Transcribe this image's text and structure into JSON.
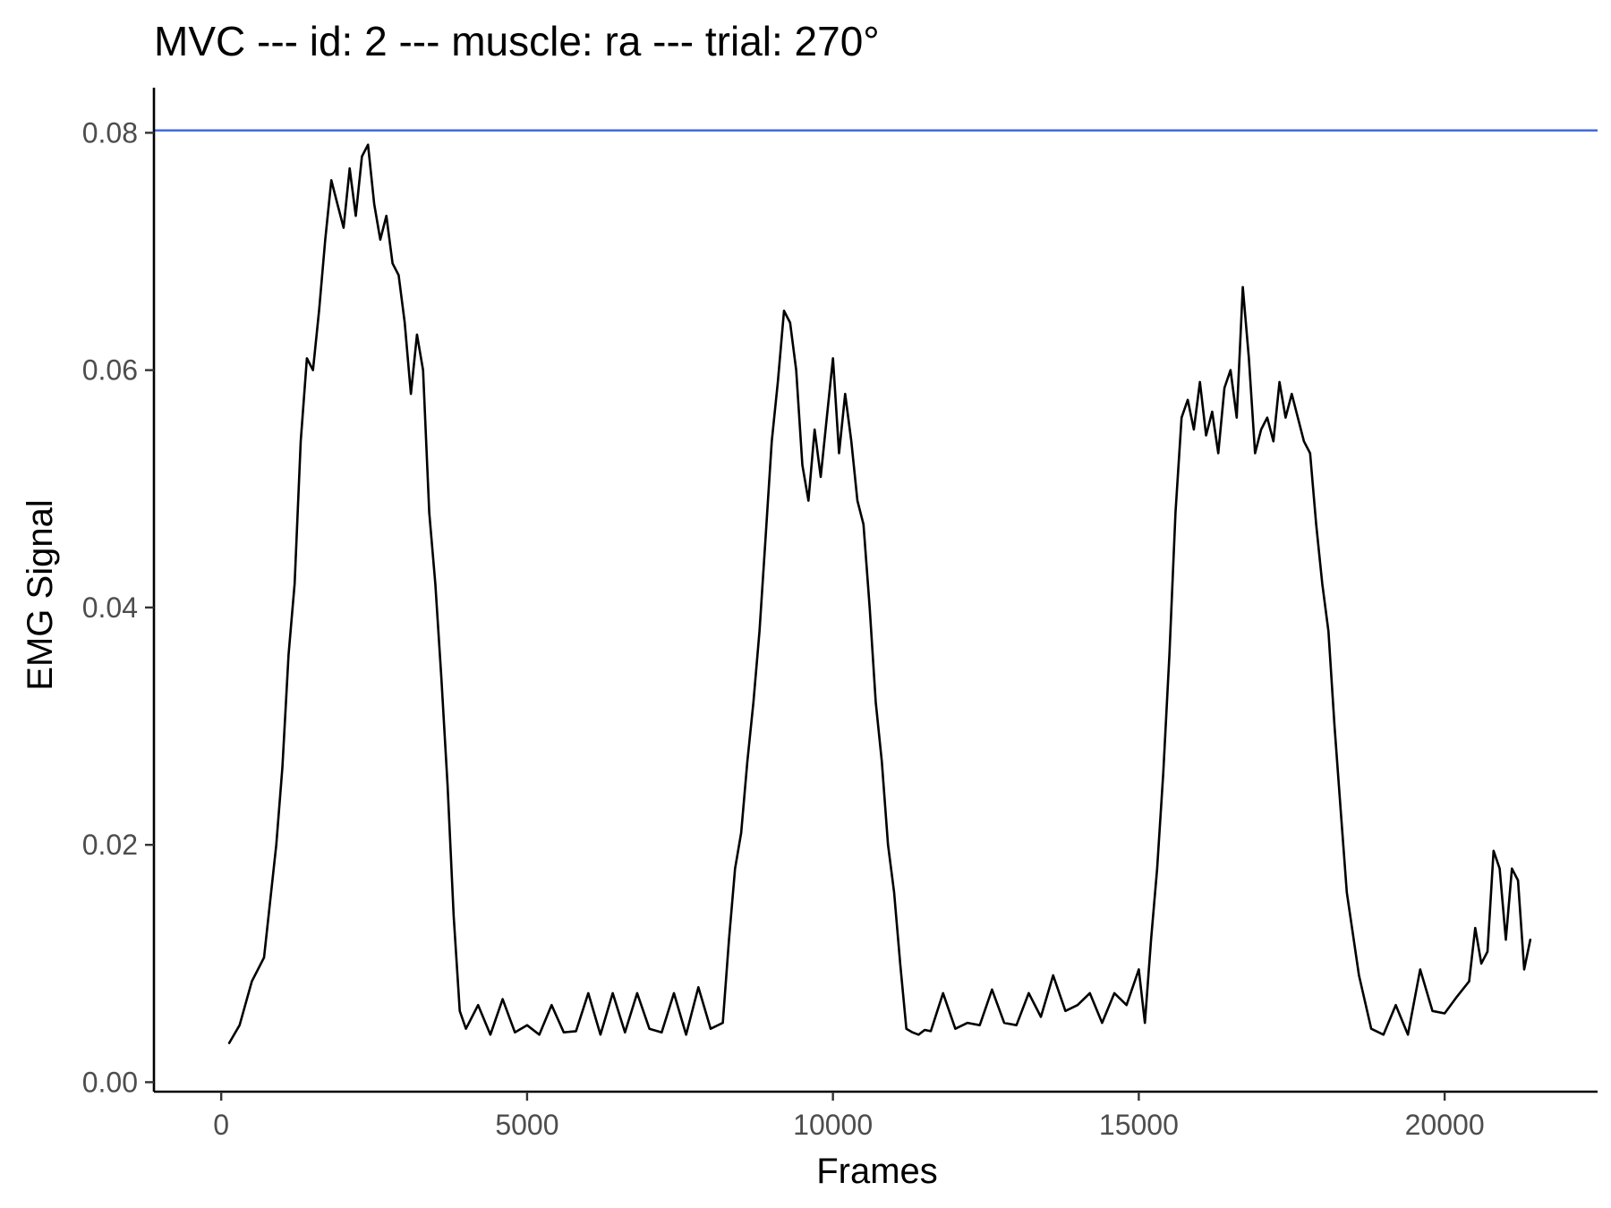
{
  "chart_data": {
    "type": "line",
    "title": "MVC --- id: 2 --- muscle: ra --- trial: 270°",
    "xlabel": "Frames",
    "ylabel": "EMG Signal",
    "xlim": [
      -1100,
      22500
    ],
    "ylim": [
      -0.0008,
      0.0838
    ],
    "x_ticks": [
      0,
      5000,
      10000,
      15000,
      20000
    ],
    "x_tick_labels": [
      "0",
      "5000",
      "10000",
      "15000",
      "20000"
    ],
    "y_ticks": [
      0.0,
      0.02,
      0.04,
      0.06,
      0.08
    ],
    "y_tick_labels": [
      "0.00",
      "0.02",
      "0.04",
      "0.06",
      "0.08"
    ],
    "grid": false,
    "reference_line": {
      "orientation": "horizontal",
      "y": 0.0802,
      "color": "#4169E1"
    },
    "series": [
      {
        "color": "#000000",
        "x": [
          130,
          300,
          500,
          700,
          900,
          1000,
          1100,
          1200,
          1300,
          1400,
          1500,
          1600,
          1700,
          1800,
          1900,
          2000,
          2100,
          2200,
          2300,
          2400,
          2500,
          2600,
          2700,
          2800,
          2900,
          3000,
          3100,
          3200,
          3300,
          3400,
          3500,
          3600,
          3700,
          3800,
          3900,
          4000,
          4200,
          4400,
          4600,
          4800,
          5000,
          5200,
          5400,
          5600,
          5800,
          6000,
          6200,
          6400,
          6600,
          6800,
          7000,
          7200,
          7400,
          7600,
          7800,
          8000,
          8200,
          8300,
          8400,
          8500,
          8600,
          8700,
          8800,
          8900,
          9000,
          9100,
          9200,
          9300,
          9400,
          9500,
          9600,
          9700,
          9800,
          9900,
          10000,
          10100,
          10200,
          10300,
          10400,
          10500,
          10600,
          10700,
          10800,
          10900,
          11000,
          11100,
          11200,
          11300,
          11400,
          11500,
          11600,
          11800,
          12000,
          12200,
          12400,
          12600,
          12800,
          13000,
          13200,
          13400,
          13600,
          13800,
          14000,
          14200,
          14400,
          14600,
          14800,
          15000,
          15100,
          15200,
          15300,
          15400,
          15500,
          15600,
          15700,
          15800,
          15900,
          16000,
          16100,
          16200,
          16300,
          16400,
          16500,
          16600,
          16700,
          16800,
          16900,
          17000,
          17100,
          17200,
          17300,
          17400,
          17500,
          17600,
          17700,
          17800,
          17900,
          18000,
          18100,
          18200,
          18300,
          18400,
          18600,
          18800,
          19000,
          19200,
          19400,
          19600,
          19800,
          20000,
          20200,
          20400,
          20500,
          20600,
          20700,
          20800,
          20900,
          21000,
          21100,
          21200,
          21300,
          21400
        ],
        "y": [
          0.0033,
          0.0048,
          0.0085,
          0.0105,
          0.02,
          0.0265,
          0.036,
          0.042,
          0.054,
          0.061,
          0.06,
          0.065,
          0.071,
          0.076,
          0.074,
          0.072,
          0.077,
          0.073,
          0.078,
          0.079,
          0.074,
          0.071,
          0.073,
          0.069,
          0.068,
          0.064,
          0.058,
          0.063,
          0.06,
          0.048,
          0.042,
          0.034,
          0.025,
          0.014,
          0.006,
          0.0045,
          0.0065,
          0.004,
          0.007,
          0.0042,
          0.0048,
          0.004,
          0.0065,
          0.0042,
          0.0043,
          0.0075,
          0.004,
          0.0075,
          0.0042,
          0.0075,
          0.0045,
          0.0042,
          0.0075,
          0.004,
          0.008,
          0.0045,
          0.005,
          0.012,
          0.018,
          0.021,
          0.027,
          0.032,
          0.038,
          0.046,
          0.054,
          0.059,
          0.065,
          0.064,
          0.06,
          0.052,
          0.049,
          0.055,
          0.051,
          0.056,
          0.061,
          0.053,
          0.058,
          0.054,
          0.049,
          0.047,
          0.04,
          0.032,
          0.027,
          0.02,
          0.016,
          0.01,
          0.0045,
          0.0042,
          0.004,
          0.0044,
          0.0043,
          0.0075,
          0.0045,
          0.005,
          0.0048,
          0.0078,
          0.005,
          0.0048,
          0.0075,
          0.0055,
          0.009,
          0.006,
          0.0065,
          0.0075,
          0.005,
          0.0075,
          0.0065,
          0.0095,
          0.005,
          0.012,
          0.018,
          0.026,
          0.036,
          0.048,
          0.056,
          0.0575,
          0.055,
          0.059,
          0.0545,
          0.0565,
          0.053,
          0.0585,
          0.06,
          0.056,
          0.067,
          0.061,
          0.053,
          0.055,
          0.056,
          0.054,
          0.059,
          0.056,
          0.058,
          0.056,
          0.054,
          0.053,
          0.047,
          0.042,
          0.038,
          0.03,
          0.023,
          0.016,
          0.009,
          0.0045,
          0.004,
          0.0065,
          0.004,
          0.0095,
          0.006,
          0.0058,
          0.0072,
          0.0085,
          0.013,
          0.01,
          0.011,
          0.0195,
          0.018,
          0.012,
          0.018,
          0.017,
          0.0095,
          0.012
        ]
      }
    ]
  }
}
